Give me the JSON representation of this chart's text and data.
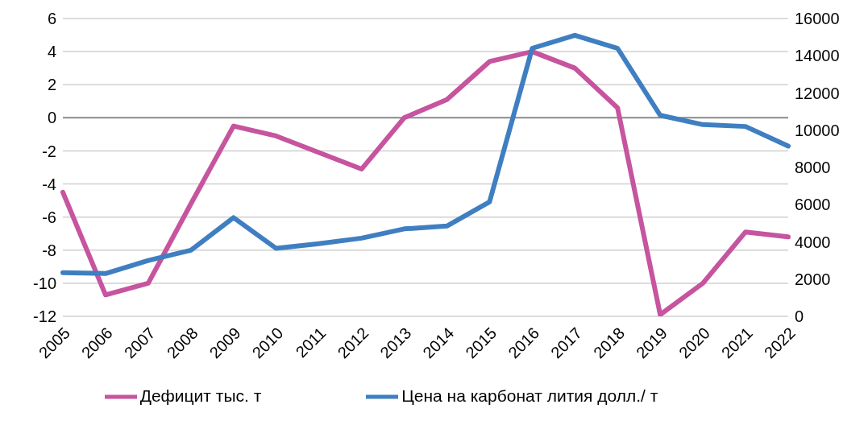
{
  "chart_data": {
    "type": "line",
    "categories": [
      "2005",
      "2006",
      "2007",
      "2008",
      "2009",
      "2010",
      "2011",
      "2012",
      "2013",
      "2014",
      "2015",
      "2016",
      "2017",
      "2018",
      "2019",
      "2020",
      "2021",
      "2022"
    ],
    "series": [
      {
        "name": "Дефицит тыс. т",
        "color": "#c6549f",
        "values": [
          -4.5,
          -10.7,
          -10,
          -5.2,
          -0.5,
          -1.1,
          -2.1,
          -3.1,
          0,
          1.1,
          3.4,
          4,
          3,
          0.6,
          -11.9,
          -10,
          -6.9,
          -7.2
        ]
      },
      {
        "name": "Цена на карбонат лития долл./ т",
        "color": "#3f7fc1",
        "axis": "y2",
        "values": [
          2350,
          2300,
          3000,
          3550,
          5300,
          3650,
          3900,
          4200,
          4700,
          4850,
          6150,
          14400,
          15100,
          14400,
          10800,
          10300,
          10200,
          9150
        ]
      }
    ],
    "ylim": [
      -12,
      6
    ],
    "yticks": [
      -12,
      -10,
      -8,
      -6,
      -4,
      -2,
      0,
      2,
      4,
      6
    ],
    "y2lim": [
      0,
      16000
    ],
    "y2ticks": [
      0,
      2000,
      4000,
      6000,
      8000,
      10000,
      12000,
      14000,
      16000
    ],
    "grid": "y",
    "legend": "bottom",
    "marker": "none",
    "line_style": "solid",
    "ref_lines": [
      {
        "axis": "y",
        "value": 0,
        "color": "#8c8c8c"
      }
    ]
  }
}
